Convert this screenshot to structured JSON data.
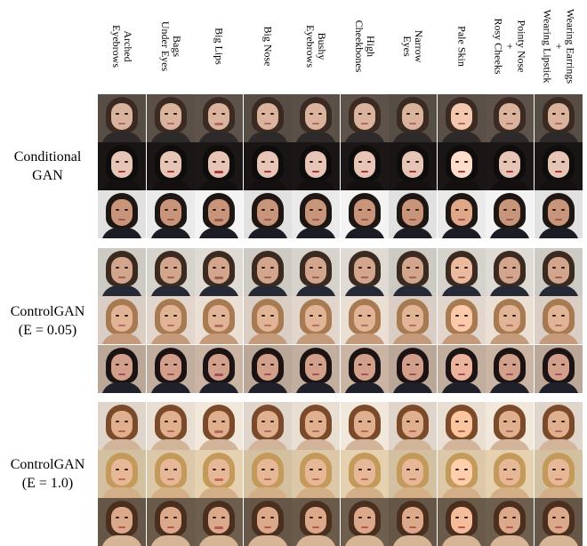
{
  "column_headers": [
    "Arched\nEyebrows",
    "Bags\nUnder Eyes",
    "Big Lips",
    "Big Nose",
    "Bushy\nEyebrows",
    "High\nCheekbones",
    "Narrow\nEyes",
    "Pale Skin",
    "Pointy Nose\n+\nRosy Cheeks",
    "Wearing Earrings\n+\nWearing Lipstick"
  ],
  "row_groups": [
    {
      "label_lines": [
        "Conditional",
        "GAN"
      ]
    },
    {
      "label_lines": [
        "ControlGAN",
        "(E = 0.05)"
      ]
    },
    {
      "label_lines": [
        "ControlGAN",
        "(E = 1.0)"
      ]
    }
  ],
  "rows": [
    {
      "subject": "woman-brown-hair-dark-bg",
      "bg": "#5a5048",
      "hair": "#3b2a22",
      "skin": "#d9b39c",
      "body": "#2e2a2a",
      "lip": "#b06a64"
    },
    {
      "subject": "woman-black-bangs-dark-bg",
      "bg": "#1a1616",
      "hair": "#0f0c0c",
      "skin": "#e6c4b6",
      "body": "#141010",
      "lip": "#a8343c"
    },
    {
      "subject": "man-short-hair-suit",
      "bg": "#eaeaea",
      "hair": "#1e1612",
      "skin": "#c8957a",
      "body": "#1c1c24",
      "lip": "#9a5a50"
    },
    {
      "subject": "man-glasses-suit",
      "bg": "#d6d2cc",
      "hair": "#3a2a20",
      "skin": "#d2a58c",
      "body": "#262a36",
      "lip": "#9a6056"
    },
    {
      "subject": "woman-light-brown-hair",
      "bg": "#e2d6cc",
      "hair": "#a87a52",
      "skin": "#e1b496",
      "body": "#c49a7a",
      "lip": "#b26e64"
    },
    {
      "subject": "woman-long-dark-hair",
      "bg": "#c2ae9e",
      "hair": "#1c1414",
      "skin": "#d2a08a",
      "body": "#20202a",
      "lip": "#a4505a"
    },
    {
      "subject": "woman-curly-auburn-hair",
      "bg": "#e8ded2",
      "hair": "#7a4a2a",
      "skin": "#e0b08e",
      "body": "#d2b49a",
      "lip": "#b46458"
    },
    {
      "subject": "woman-blonde-curly-hair",
      "bg": "#dcc8a8",
      "hair": "#c49a5a",
      "skin": "#e6b898",
      "body": "#d4ae86",
      "lip": "#c06a5a"
    },
    {
      "subject": "woman-brown-hair-smiling",
      "bg": "#6a5a4a",
      "hair": "#4a2e1e",
      "skin": "#dba88a",
      "body": "#d6b496",
      "lip": "#b25a52"
    }
  ]
}
